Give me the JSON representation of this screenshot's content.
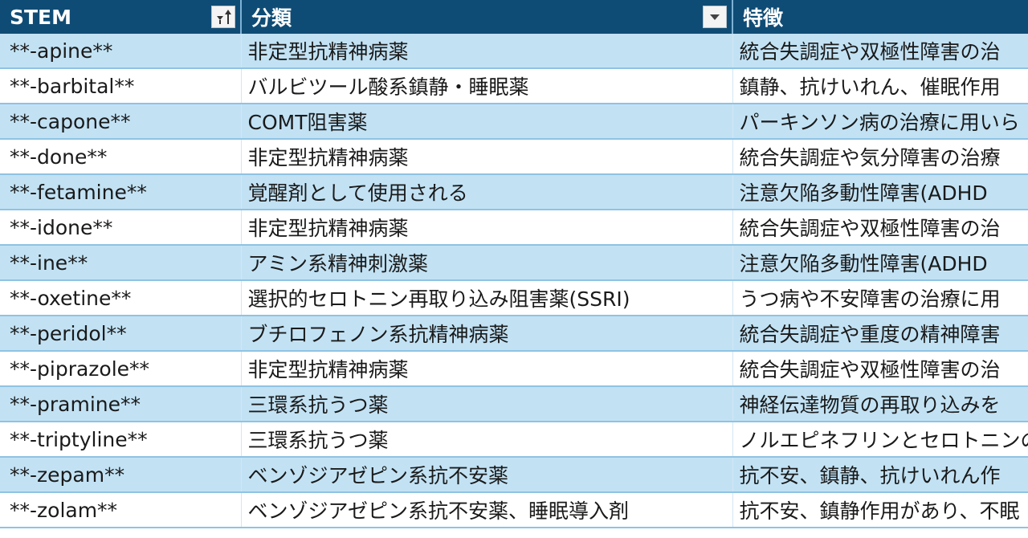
{
  "headers": {
    "stem": "STEM",
    "classification": "分類",
    "features": "特徴"
  },
  "rows": [
    {
      "stem": "**-apine**",
      "classification": "非定型抗精神病薬",
      "features": "統合失調症や双極性障害の治"
    },
    {
      "stem": "**-barbital**",
      "classification": "バルビツール酸系鎮静・睡眠薬",
      "features": "鎮静、抗けいれん、催眠作用"
    },
    {
      "stem": "**-capone**",
      "classification": "COMT阻害薬",
      "features": "パーキンソン病の治療に用いら"
    },
    {
      "stem": "**-done**",
      "classification": "非定型抗精神病薬",
      "features": "統合失調症や気分障害の治療"
    },
    {
      "stem": "**-fetamine**",
      "classification": "覚醒剤として使用される",
      "features": "注意欠陥多動性障害(ADHD"
    },
    {
      "stem": "**-idone**",
      "classification": "非定型抗精神病薬",
      "features": "統合失調症や双極性障害の治"
    },
    {
      "stem": "**-ine**",
      "classification": "アミン系精神刺激薬",
      "features": "注意欠陥多動性障害(ADHD"
    },
    {
      "stem": "**-oxetine**",
      "classification": "選択的セロトニン再取り込み阻害薬(SSRI)",
      "features": "うつ病や不安障害の治療に用"
    },
    {
      "stem": "**-peridol**",
      "classification": "ブチロフェノン系抗精神病薬",
      "features": "統合失調症や重度の精神障害"
    },
    {
      "stem": "**-piprazole**",
      "classification": "非定型抗精神病薬",
      "features": "統合失調症や双極性障害の治"
    },
    {
      "stem": "**-pramine**",
      "classification": "三環系抗うつ薬",
      "features": "神経伝達物質の再取り込みを"
    },
    {
      "stem": "**-triptyline**",
      "classification": "三環系抗うつ薬",
      "features": "ノルエピネフリンとセロトニンの再"
    },
    {
      "stem": "**-zepam**",
      "classification": "ベンゾジアゼピン系抗不安薬",
      "features": "抗不安、鎮静、抗けいれん作"
    },
    {
      "stem": "**-zolam**",
      "classification": "ベンゾジアゼピン系抗不安薬、睡眠導入剤",
      "features": "抗不安、鎮静作用があり、不眠"
    }
  ],
  "icons": {
    "stem_filter": "sort-filter-icon",
    "classification_filter": "dropdown-arrow-icon"
  },
  "colors": {
    "header_bg": "#0f4c75",
    "band_row": "#c2e2f4",
    "row_border": "#8fc3e3"
  }
}
